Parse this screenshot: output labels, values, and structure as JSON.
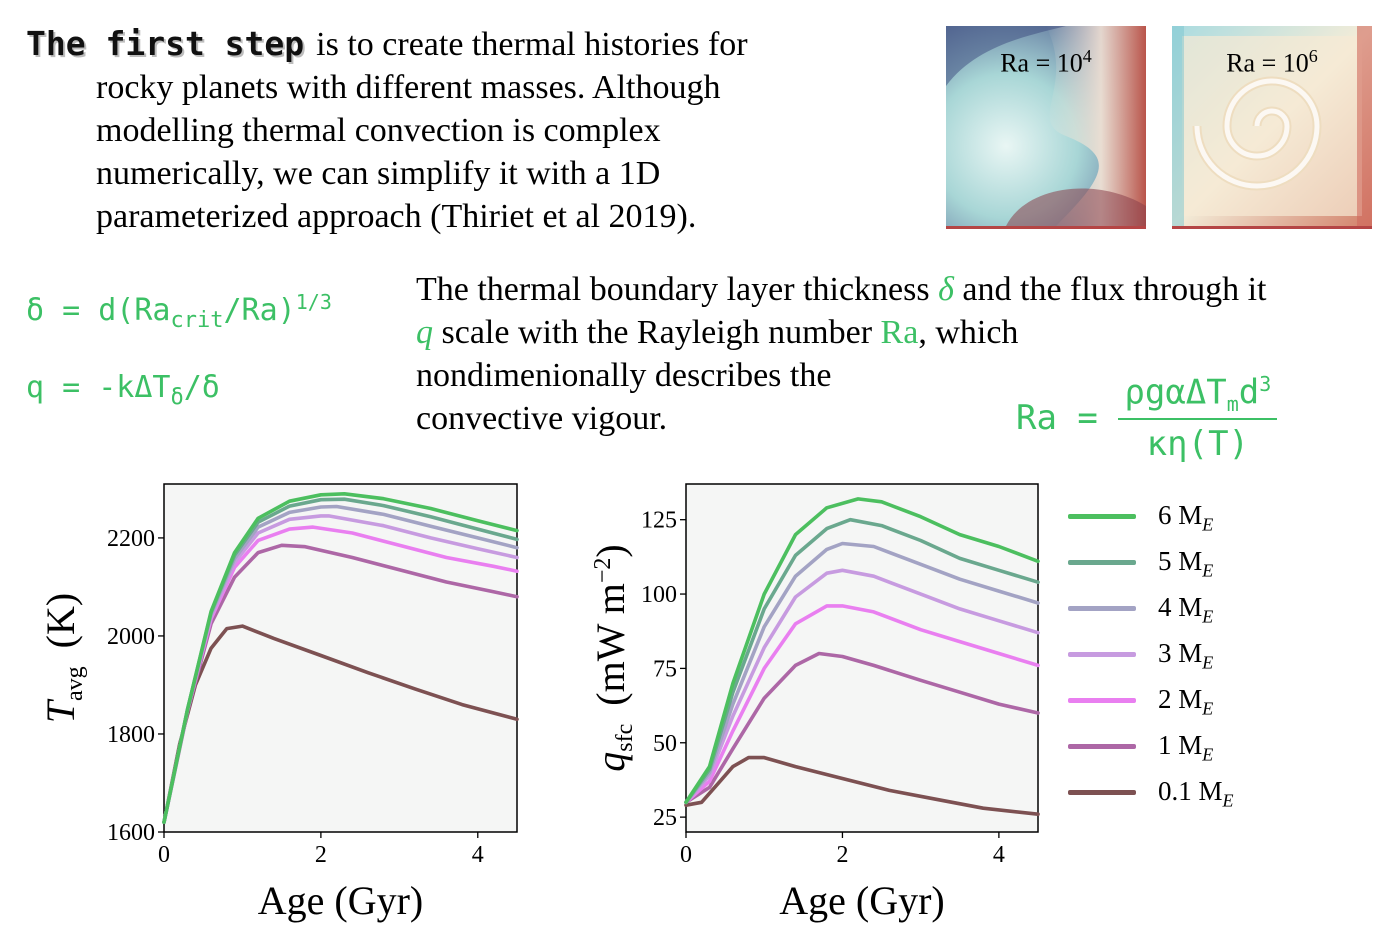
{
  "intro": {
    "highlight": "The first step",
    "line1_rest": "is to create thermal histories for",
    "line2": "rocky planets with different masses. Although",
    "line3": "modelling thermal convection is complex",
    "line4": "numerically, we can simplify it with a 1D",
    "line5": "parameterized approach (Thiriet et al 2019)."
  },
  "thumbnails": [
    {
      "label_base": "Ra = 10",
      "label_exp": "4"
    },
    {
      "label_base": "Ra = 10",
      "label_exp": "6"
    }
  ],
  "equations": {
    "delta_lhs": "δ = d(Ra",
    "delta_sub": "crit",
    "delta_mid": "/Ra)",
    "delta_exp": "1/3",
    "q_lhs": "q = -kΔT",
    "q_sub": "δ",
    "q_rhs": "/δ",
    "ra_lhs": "Ra =",
    "ra_num_a": "ρgαΔT",
    "ra_num_sub": "m",
    "ra_num_b": "d",
    "ra_num_exp": "3",
    "ra_den": "κη(T)"
  },
  "description": {
    "t1": "The thermal boundary layer thickness ",
    "delta": "δ",
    "t2": " and the flux through it",
    "q": "q",
    "t3": " scale with the Rayleigh number ",
    "ra": "Ra",
    "t4": ", which",
    "t5": "nondimenionally describes the",
    "t6": "convective vigour."
  },
  "legend": [
    {
      "label": "6 M",
      "sub": "E",
      "color": "#4cbf5f"
    },
    {
      "label": "5 M",
      "sub": "E",
      "color": "#6aa88e"
    },
    {
      "label": "4 M",
      "sub": "E",
      "color": "#a3a3c4"
    },
    {
      "label": "3 M",
      "sub": "E",
      "color": "#c79be0"
    },
    {
      "label": "2 M",
      "sub": "E",
      "color": "#e97ff0"
    },
    {
      "label": "1 M",
      "sub": "E",
      "color": "#ad67a6"
    },
    {
      "label": "0.1 M",
      "sub": "E",
      "color": "#7d5152"
    }
  ],
  "chart_data": [
    {
      "type": "line",
      "xlabel": "Age (Gyr)",
      "ylabel_main": "T",
      "ylabel_sub": "avg",
      "ylabel_unit": "(K)",
      "xlim": [
        0,
        4.5
      ],
      "ylim": [
        1600,
        2310
      ],
      "xticks": [
        0,
        2,
        4
      ],
      "yticks": [
        1600,
        1800,
        2000,
        2200
      ],
      "series": [
        {
          "name": "6 M_E",
          "color": "#4cbf5f",
          "points": [
            [
              0,
              1620
            ],
            [
              0.3,
              1850
            ],
            [
              0.6,
              2050
            ],
            [
              0.9,
              2170
            ],
            [
              1.2,
              2240
            ],
            [
              1.6,
              2275
            ],
            [
              2.0,
              2288
            ],
            [
              2.3,
              2290
            ],
            [
              2.8,
              2280
            ],
            [
              3.4,
              2260
            ],
            [
              4.0,
              2235
            ],
            [
              4.5,
              2215
            ]
          ]
        },
        {
          "name": "5 M_E",
          "color": "#6aa88e",
          "points": [
            [
              0,
              1620
            ],
            [
              0.3,
              1850
            ],
            [
              0.6,
              2048
            ],
            [
              0.9,
              2165
            ],
            [
              1.2,
              2232
            ],
            [
              1.6,
              2265
            ],
            [
              2.0,
              2278
            ],
            [
              2.3,
              2279
            ],
            [
              2.8,
              2266
            ],
            [
              3.4,
              2243
            ],
            [
              4.0,
              2218
            ],
            [
              4.5,
              2197
            ]
          ]
        },
        {
          "name": "4 M_E",
          "color": "#a3a3c4",
          "points": [
            [
              0,
              1620
            ],
            [
              0.3,
              1850
            ],
            [
              0.6,
              2045
            ],
            [
              0.9,
              2158
            ],
            [
              1.2,
              2222
            ],
            [
              1.6,
              2252
            ],
            [
              2.0,
              2263
            ],
            [
              2.2,
              2264
            ],
            [
              2.8,
              2248
            ],
            [
              3.4,
              2224
            ],
            [
              4.0,
              2200
            ],
            [
              4.5,
              2180
            ]
          ]
        },
        {
          "name": "3 M_E",
          "color": "#c79be0",
          "points": [
            [
              0,
              1620
            ],
            [
              0.3,
              1850
            ],
            [
              0.6,
              2040
            ],
            [
              0.9,
              2150
            ],
            [
              1.2,
              2210
            ],
            [
              1.6,
              2238
            ],
            [
              2.0,
              2245
            ],
            [
              2.1,
              2245
            ],
            [
              2.8,
              2225
            ],
            [
              3.4,
              2200
            ],
            [
              4.0,
              2178
            ],
            [
              4.5,
              2160
            ]
          ]
        },
        {
          "name": "2 M_E",
          "color": "#e97ff0",
          "points": [
            [
              0,
              1620
            ],
            [
              0.3,
              1848
            ],
            [
              0.6,
              2035
            ],
            [
              0.9,
              2140
            ],
            [
              1.2,
              2195
            ],
            [
              1.6,
              2218
            ],
            [
              1.9,
              2222
            ],
            [
              2.4,
              2210
            ],
            [
              3.0,
              2185
            ],
            [
              3.6,
              2160
            ],
            [
              4.2,
              2142
            ],
            [
              4.5,
              2132
            ]
          ]
        },
        {
          "name": "1 M_E",
          "color": "#ad67a6",
          "points": [
            [
              0,
              1620
            ],
            [
              0.3,
              1845
            ],
            [
              0.6,
              2025
            ],
            [
              0.9,
              2120
            ],
            [
              1.2,
              2170
            ],
            [
              1.5,
              2185
            ],
            [
              1.8,
              2182
            ],
            [
              2.4,
              2160
            ],
            [
              3.0,
              2135
            ],
            [
              3.6,
              2110
            ],
            [
              4.2,
              2090
            ],
            [
              4.5,
              2080
            ]
          ]
        },
        {
          "name": "0.1 M_E",
          "color": "#7d5152",
          "points": [
            [
              0,
              1620
            ],
            [
              0.2,
              1780
            ],
            [
              0.4,
              1900
            ],
            [
              0.6,
              1975
            ],
            [
              0.8,
              2015
            ],
            [
              1.0,
              2020
            ],
            [
              1.4,
              1995
            ],
            [
              2.0,
              1960
            ],
            [
              2.6,
              1925
            ],
            [
              3.2,
              1892
            ],
            [
              3.8,
              1860
            ],
            [
              4.5,
              1830
            ]
          ]
        }
      ]
    },
    {
      "type": "line",
      "xlabel": "Age (Gyr)",
      "ylabel_main": "q",
      "ylabel_sub": "sfc",
      "ylabel_unit": "(mW m",
      "ylabel_unit_exp": "−2",
      "ylabel_unit_end": ")",
      "xlim": [
        0,
        4.5
      ],
      "ylim": [
        20,
        137
      ],
      "xticks": [
        0,
        2,
        4
      ],
      "yticks": [
        25,
        50,
        75,
        100,
        125
      ],
      "series": [
        {
          "name": "6 M_E",
          "color": "#4cbf5f",
          "points": [
            [
              0,
              30
            ],
            [
              0.3,
              42
            ],
            [
              0.6,
              70
            ],
            [
              1.0,
              100
            ],
            [
              1.4,
              120
            ],
            [
              1.8,
              129
            ],
            [
              2.2,
              132
            ],
            [
              2.5,
              131
            ],
            [
              3.0,
              126
            ],
            [
              3.5,
              120
            ],
            [
              4.0,
              116
            ],
            [
              4.5,
              111
            ]
          ]
        },
        {
          "name": "5 M_E",
          "color": "#6aa88e",
          "points": [
            [
              0,
              30
            ],
            [
              0.3,
              41
            ],
            [
              0.6,
              67
            ],
            [
              1.0,
              95
            ],
            [
              1.4,
              113
            ],
            [
              1.8,
              122
            ],
            [
              2.1,
              125
            ],
            [
              2.5,
              123
            ],
            [
              3.0,
              118
            ],
            [
              3.5,
              112
            ],
            [
              4.0,
              108
            ],
            [
              4.5,
              104
            ]
          ]
        },
        {
          "name": "4 M_E",
          "color": "#a3a3c4",
          "points": [
            [
              0,
              30
            ],
            [
              0.3,
              40
            ],
            [
              0.6,
              63
            ],
            [
              1.0,
              89
            ],
            [
              1.4,
              106
            ],
            [
              1.8,
              115
            ],
            [
              2.0,
              117
            ],
            [
              2.4,
              116
            ],
            [
              3.0,
              110
            ],
            [
              3.5,
              105
            ],
            [
              4.0,
              101
            ],
            [
              4.5,
              97
            ]
          ]
        },
        {
          "name": "3 M_E",
          "color": "#c79be0",
          "points": [
            [
              0,
              30
            ],
            [
              0.3,
              39
            ],
            [
              0.6,
              59
            ],
            [
              1.0,
              82
            ],
            [
              1.4,
              99
            ],
            [
              1.8,
              107
            ],
            [
              2.0,
              108
            ],
            [
              2.4,
              106
            ],
            [
              3.0,
              100
            ],
            [
              3.5,
              95
            ],
            [
              4.0,
              91
            ],
            [
              4.5,
              87
            ]
          ]
        },
        {
          "name": "2 M_E",
          "color": "#e97ff0",
          "points": [
            [
              0,
              30
            ],
            [
              0.3,
              37
            ],
            [
              0.6,
              54
            ],
            [
              1.0,
              75
            ],
            [
              1.4,
              90
            ],
            [
              1.8,
              96
            ],
            [
              2.0,
              96
            ],
            [
              2.4,
              94
            ],
            [
              3.0,
              88
            ],
            [
              3.5,
              84
            ],
            [
              4.0,
              80
            ],
            [
              4.5,
              76
            ]
          ]
        },
        {
          "name": "1 M_E",
          "color": "#ad67a6",
          "points": [
            [
              0,
              30
            ],
            [
              0.3,
              35
            ],
            [
              0.6,
              48
            ],
            [
              1.0,
              65
            ],
            [
              1.4,
              76
            ],
            [
              1.7,
              80
            ],
            [
              2.0,
              79
            ],
            [
              2.4,
              76
            ],
            [
              3.0,
              71
            ],
            [
              3.5,
              67
            ],
            [
              4.0,
              63
            ],
            [
              4.5,
              60
            ]
          ]
        },
        {
          "name": "0.1 M_E",
          "color": "#7d5152",
          "points": [
            [
              0,
              29
            ],
            [
              0.2,
              30
            ],
            [
              0.4,
              36
            ],
            [
              0.6,
              42
            ],
            [
              0.8,
              45
            ],
            [
              1.0,
              45
            ],
            [
              1.4,
              42
            ],
            [
              2.0,
              38
            ],
            [
              2.6,
              34
            ],
            [
              3.2,
              31
            ],
            [
              3.8,
              28
            ],
            [
              4.5,
              26
            ]
          ]
        }
      ]
    }
  ]
}
